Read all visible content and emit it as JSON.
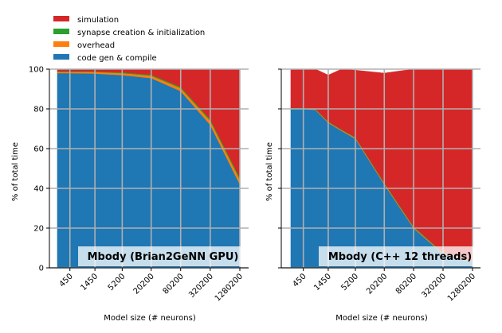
{
  "legend": {
    "items": [
      {
        "name": "simulation",
        "color": "#d62728"
      },
      {
        "name": "synapse creation & initialization",
        "color": "#2ca02c"
      },
      {
        "name": "overhead",
        "color": "#ff7f0e"
      },
      {
        "name": "code gen & compile",
        "color": "#1f77b4"
      }
    ]
  },
  "chart_data": [
    {
      "type": "area",
      "stacked": true,
      "title": "Mbody (Brian2GeNN GPU)",
      "xlabel": "Model size (# neurons)",
      "ylabel": "% of total time",
      "ylim": [
        0,
        100
      ],
      "yticks": [
        "0",
        "20",
        "40",
        "60",
        "80",
        "100"
      ],
      "x_scale": "log",
      "x": [
        250,
        450,
        1450,
        5200,
        20200,
        80200,
        320200,
        1280200
      ],
      "xticks": [
        "450",
        "1450",
        "5200",
        "20200",
        "80200",
        "320200",
        "1280200"
      ],
      "grid": true,
      "series": [
        {
          "name": "code gen & compile",
          "values": [
            98,
            98,
            97.8,
            97,
            95.5,
            89,
            72,
            42
          ]
        },
        {
          "name": "overhead",
          "values": [
            0.6,
            0.6,
            0.8,
            1.0,
            1.2,
            1.5,
            2.0,
            2.5
          ]
        },
        {
          "name": "synapse creation & initialization",
          "values": [
            0.3,
            0.3,
            0.3,
            0.4,
            0.5,
            0.6,
            0.8,
            1.0
          ]
        },
        {
          "name": "simulation",
          "values": [
            1.1,
            1.1,
            1.1,
            1.6,
            2.8,
            8.9,
            25.2,
            54.5
          ]
        }
      ]
    },
    {
      "type": "area",
      "stacked": true,
      "title": "Mbody (C++ 12 threads)",
      "xlabel": "Model size (# neurons)",
      "ylabel": "% of total time",
      "ylim": [
        0,
        100
      ],
      "yticks": [
        "0",
        "20",
        "40",
        "60",
        "80",
        "100"
      ],
      "x_scale": "log",
      "x": [
        250,
        450,
        800,
        1450,
        2700,
        5200,
        20200,
        80200,
        320200,
        1280200
      ],
      "xticks": [
        "450",
        "1450",
        "5200",
        "20200",
        "80200",
        "320200",
        "1280200"
      ],
      "grid": true,
      "series": [
        {
          "name": "code gen & compile",
          "values": [
            80,
            80,
            79.5,
            73,
            69,
            65,
            42,
            20,
            7,
            3
          ]
        },
        {
          "name": "overhead",
          "values": [
            0.3,
            0.3,
            0.3,
            0.4,
            0.4,
            0.5,
            0.5,
            0.5,
            0.4,
            0.3
          ]
        },
        {
          "name": "synapse creation & initialization",
          "values": [
            0.2,
            0.2,
            0.2,
            0.3,
            0.3,
            0.3,
            0.4,
            0.4,
            0.3,
            0.2
          ]
        },
        {
          "name": "simulation",
          "values": [
            19.5,
            19.5,
            20,
            23.3,
            30.3,
            33.7,
            55.1,
            79.1,
            92.3,
            96.5
          ]
        }
      ]
    }
  ]
}
